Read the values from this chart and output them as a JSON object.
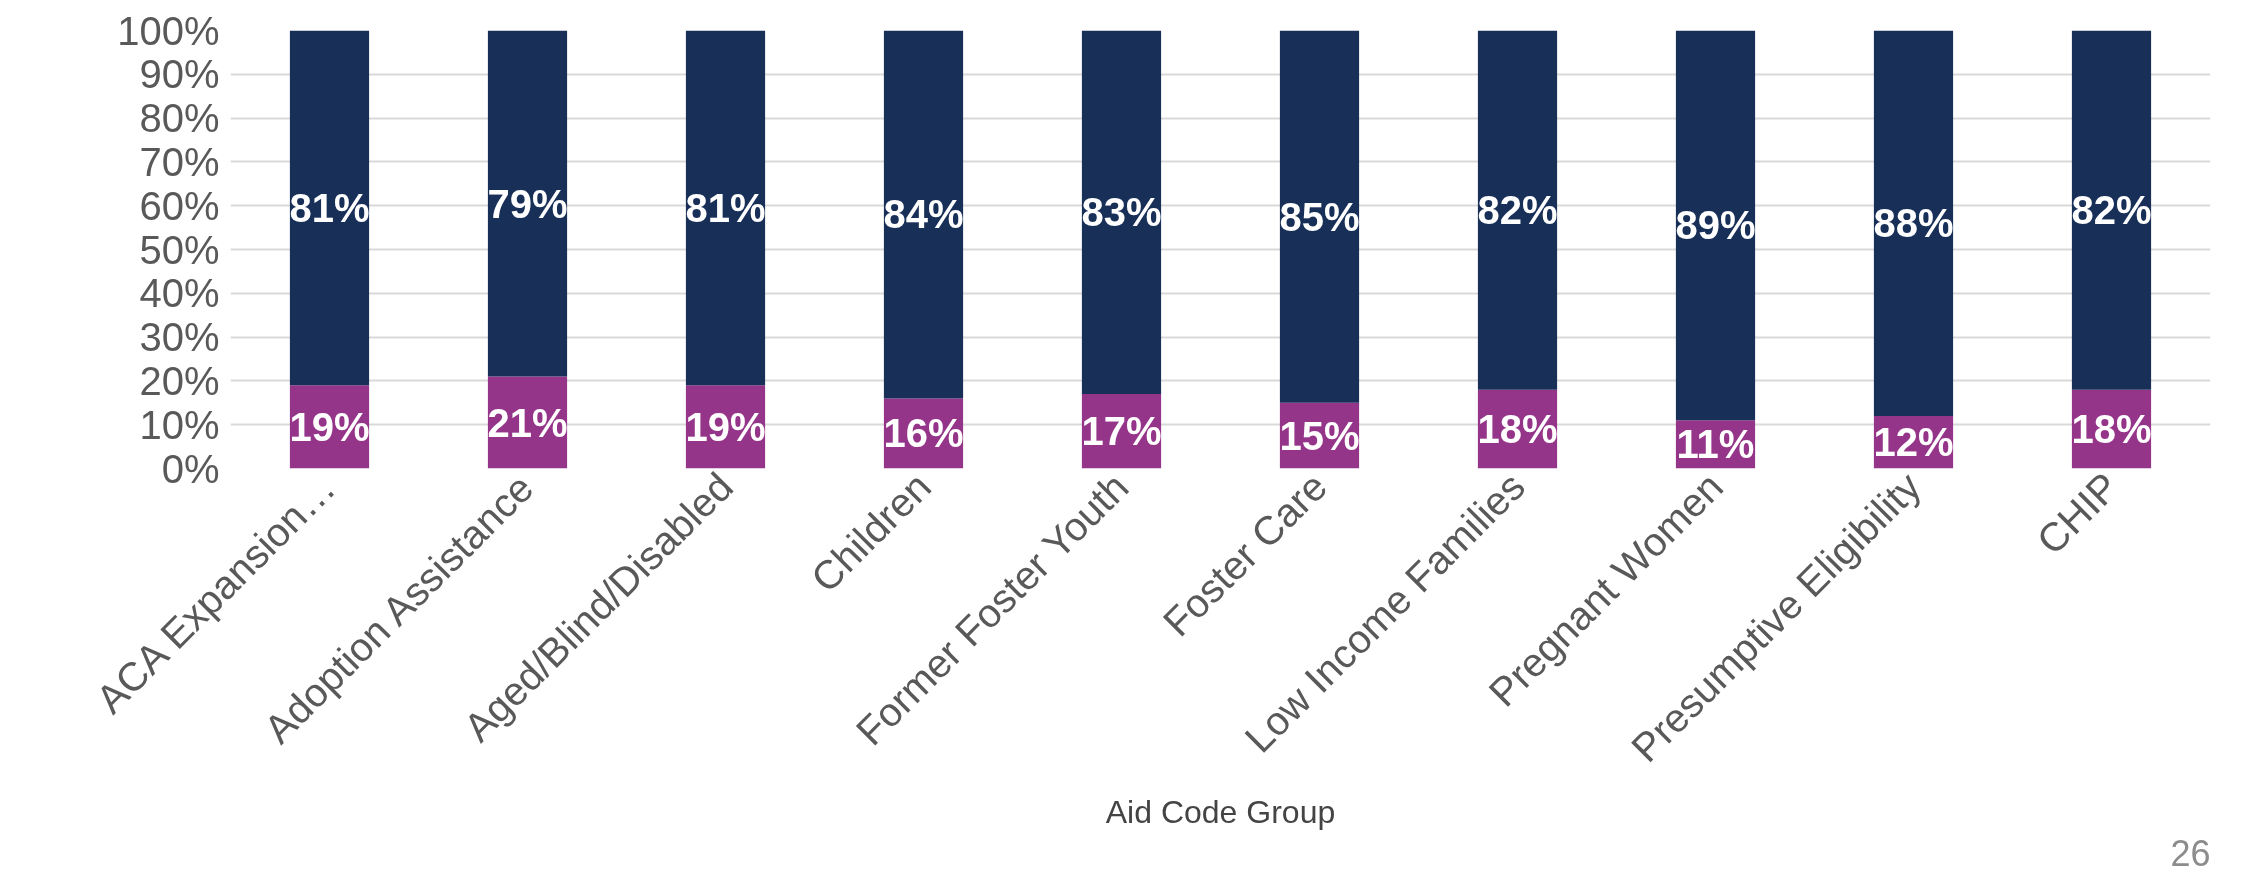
{
  "chart_data": {
    "type": "bar",
    "stacked": true,
    "xlabel": "Aid Code Group",
    "categories": [
      "ACA Expansion…",
      "Adoption Assistance",
      "Aged/Blind/Disabled",
      "Children",
      "Former Foster Youth",
      "Foster Care",
      "Low Income Families",
      "Pregnant Women",
      "Presumptive Eligibility",
      "CHIP"
    ],
    "series": [
      {
        "color": "#953589",
        "values": [
          19,
          21,
          19,
          16,
          17,
          15,
          18,
          11,
          12,
          18
        ],
        "value_labels": [
          "19%",
          "21%",
          "19%",
          "16%",
          "17%",
          "15%",
          "18%",
          "11%",
          "12%",
          "18%"
        ]
      },
      {
        "color": "#182f58",
        "values": [
          81,
          79,
          81,
          84,
          83,
          85,
          82,
          89,
          88,
          82
        ],
        "value_labels": [
          "81%",
          "79%",
          "81%",
          "84%",
          "83%",
          "85%",
          "82%",
          "89%",
          "88%",
          "82%"
        ]
      }
    ],
    "ylim": [
      0,
      100
    ],
    "yticks": [
      {
        "value": 0,
        "label": "0%"
      },
      {
        "value": 10,
        "label": "10%"
      },
      {
        "value": 20,
        "label": "20%"
      },
      {
        "value": 30,
        "label": "30%"
      },
      {
        "value": 40,
        "label": "40%"
      },
      {
        "value": 50,
        "label": "50%"
      },
      {
        "value": 60,
        "label": "60%"
      },
      {
        "value": 70,
        "label": "70%"
      },
      {
        "value": 80,
        "label": "80%"
      },
      {
        "value": 90,
        "label": "90%"
      },
      {
        "value": 100,
        "label": "100%"
      }
    ],
    "grid": "y",
    "annotations": [
      "26"
    ]
  }
}
